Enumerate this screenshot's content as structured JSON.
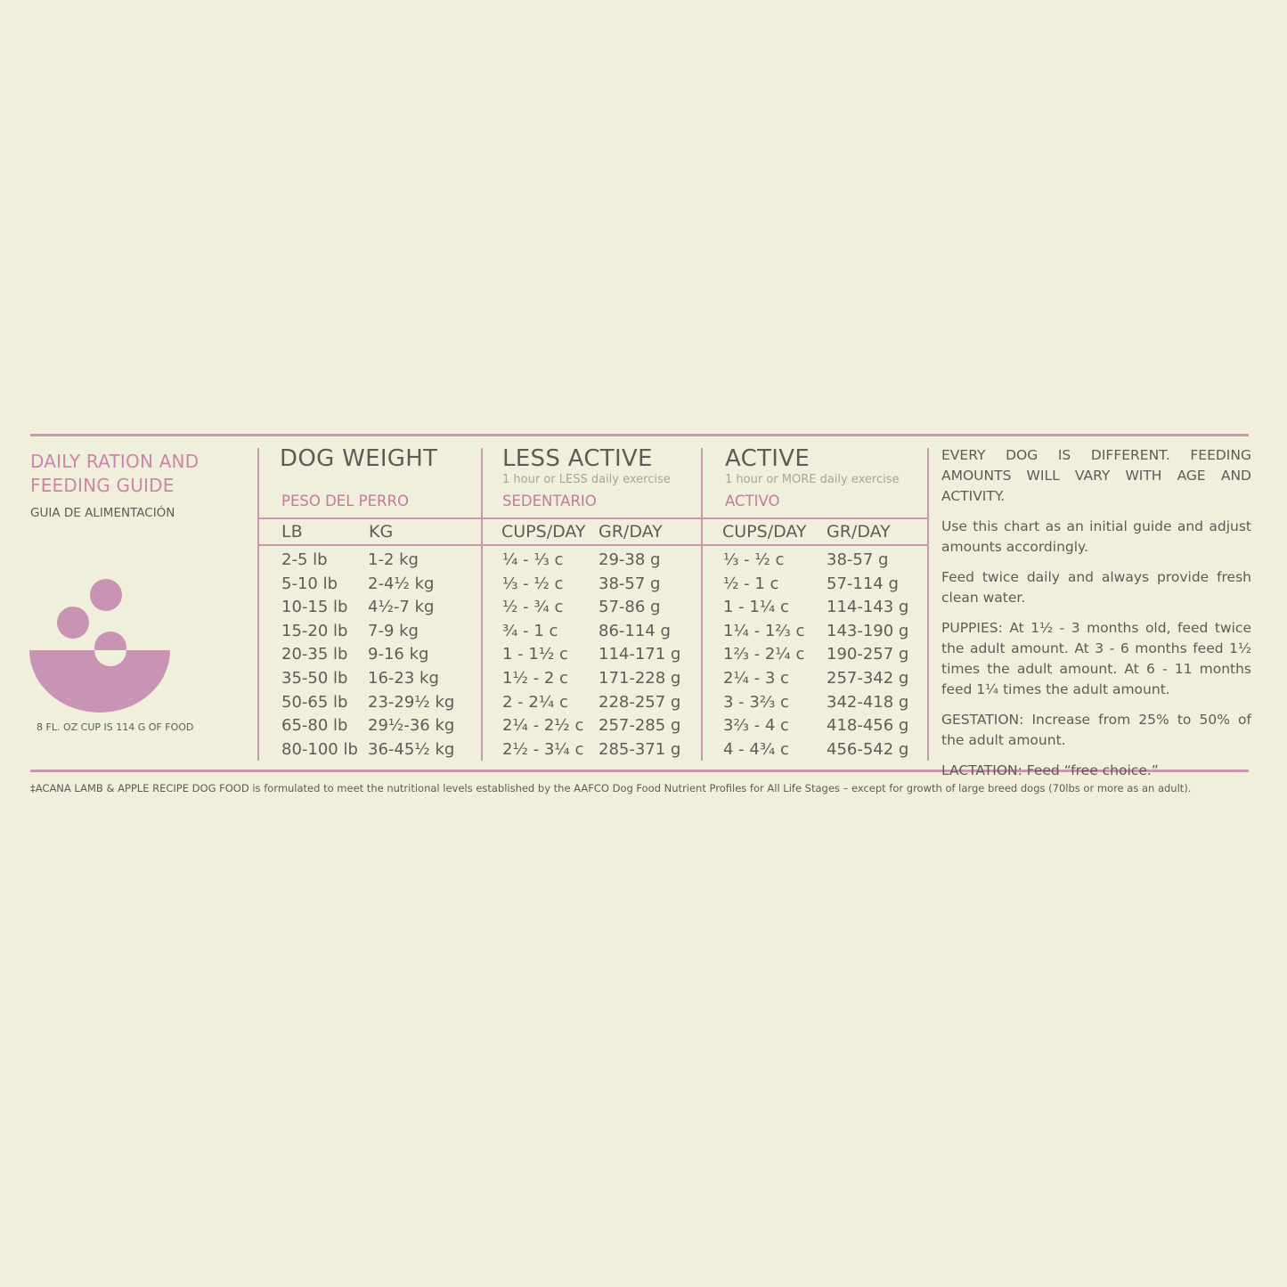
{
  "guide": {
    "title_line1": "DAILY RATION AND",
    "title_line2": "FEEDING GUIDE",
    "subtitle": "GUIA DE ALIMENTACIÓN",
    "cup_note": "8 FL. OZ CUP IS 114 G OF FOOD",
    "bowl_color": "#c994b3"
  },
  "table": {
    "weight": {
      "heading": "DOG WEIGHT",
      "sub_es": "PESO DEL PERRO",
      "col1_header": "LB",
      "col2_header": "KG",
      "lb": [
        "2-5 lb",
        "5-10 lb",
        "10-15 lb",
        "15-20 lb",
        "20-35 lb",
        "35-50 lb",
        "50-65 lb",
        "65-80 lb",
        "80-100 lb"
      ],
      "kg": [
        "1-2 kg",
        "2-4½ kg",
        "4½-7 kg",
        "7-9 kg",
        "9-16 kg",
        "16-23 kg",
        "23-29½ kg",
        "29½-36 kg",
        "36-45½ kg"
      ]
    },
    "less_active": {
      "heading": "LESS ACTIVE",
      "note": "1 hour or LESS daily exercise",
      "sub_es": "SEDENTARIO",
      "col1_header": "CUPS/DAY",
      "col2_header": "GR/DAY",
      "cups": [
        "¼ - ⅓ c",
        "⅓ - ½ c",
        "½ - ¾ c",
        "¾ - 1 c",
        "1 - 1½ c",
        "1½ - 2 c",
        "2 - 2¼ c",
        "2¼ - 2½ c",
        "2½ - 3¼ c"
      ],
      "grams": [
        "29-38 g",
        "38-57 g",
        "57-86 g",
        "86-114 g",
        "114-171 g",
        "171-228 g",
        "228-257 g",
        "257-285 g",
        "285-371 g"
      ]
    },
    "active": {
      "heading": "ACTIVE",
      "note": "1 hour or MORE daily exercise",
      "sub_es": "ACTIVO",
      "col1_header": "CUPS/DAY",
      "col2_header": "GR/DAY",
      "cups": [
        "⅓ - ½ c",
        "½ - 1 c",
        "1 - 1¼ c",
        "1¼ - 1⅔ c",
        "1⅔ - 2¼ c",
        "2¼ - 3 c",
        "3 - 3⅔ c",
        "3⅔ - 4 c",
        "4 - 4¾ c"
      ],
      "grams": [
        "38-57 g",
        "57-114 g",
        "114-143 g",
        "143-190 g",
        "190-257 g",
        "257-342 g",
        "342-418 g",
        "418-456 g",
        "456-542 g"
      ]
    }
  },
  "notes": {
    "p1": "EVERY DOG IS DIFFERENT. FEEDING AMOUNTS WILL VARY WITH AGE AND ACTIVITY.",
    "p2": "Use this chart as an initial guide and adjust amounts accordingly.",
    "p3": "Feed twice daily and always provide fresh clean water.",
    "p4": "PUPPIES: At 1½ - 3 months old, feed twice the adult amount. At 3 - 6 months feed 1½ times the adult amount. At 6 - 11 months feed 1¼ times the adult amount.",
    "p5": "GESTATION: Increase from 25% to 50% of the adult amount.",
    "p6": "LACTATION: Feed “free choice.”"
  },
  "footnote": "‡ACANA LAMB & APPLE RECIPE DOG FOOD is formulated to meet the nutritional levels established by the AAFCO Dog Food Nutrient Profiles for All Life Stages – except for growth of large breed dogs (70lbs or more as an adult)."
}
